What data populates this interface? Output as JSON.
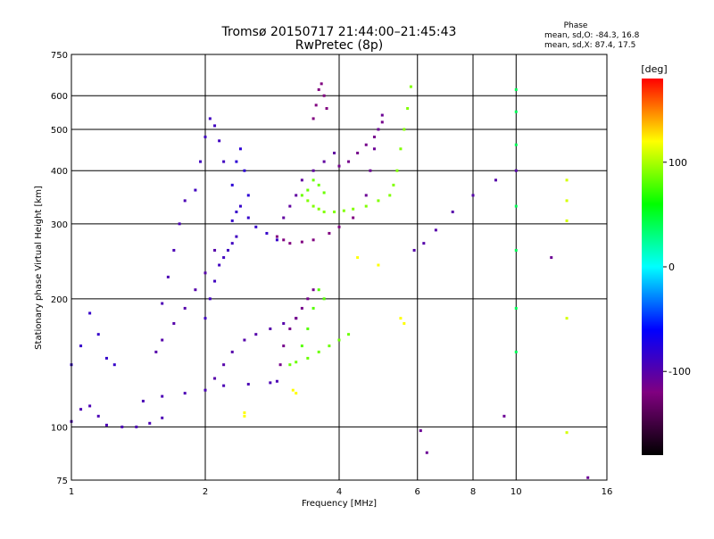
{
  "chart_data": {
    "type": "scatter",
    "title": "Tromsø 20150717 21:44:00–21:45:43",
    "subtitle": "RwPretec (8p)",
    "xlabel": "Frequency [MHz]",
    "ylabel": "Stationary phase Virtual Height [km]",
    "x_scale": "log",
    "y_scale": "log",
    "xlim": [
      1,
      16
    ],
    "ylim": [
      75,
      750
    ],
    "x_ticks": [
      1,
      2,
      4,
      6,
      8,
      10,
      16
    ],
    "y_ticks": [
      75,
      100,
      200,
      300,
      400,
      500,
      600,
      750
    ],
    "grid": true,
    "stats": {
      "heading": "Phase",
      "line_o": "mean, sd,O: -84.3, 16.8",
      "line_x": "mean, sd,X:  87.4, 17.5"
    },
    "colorbar": {
      "label": "[deg]",
      "ticks": [
        100,
        0,
        -100
      ],
      "range": [
        -180,
        180
      ],
      "colors": [
        "#ff0000",
        "#ffff00",
        "#00ff00",
        "#00ffff",
        "#0000ff",
        "#800080",
        "#000000"
      ]
    },
    "traces": [
      {
        "name": "",
        "phase": -95,
        "x": [
          1.0,
          1.05,
          1.1,
          1.15,
          1.2,
          1.3,
          1.4,
          1.5,
          1.6
        ],
        "y": [
          103,
          110,
          112,
          106,
          101,
          100,
          100,
          102,
          105
        ]
      },
      {
        "name": "",
        "phase": -85,
        "x": [
          1.0,
          1.05,
          1.1,
          1.15,
          1.2,
          1.25
        ],
        "y": [
          140,
          155,
          185,
          165,
          145,
          140
        ]
      },
      {
        "name": "",
        "phase": -95,
        "x": [
          1.45,
          1.6,
          1.8,
          2.0,
          2.2,
          2.5,
          2.8,
          2.9
        ],
        "y": [
          115,
          118,
          120,
          122,
          125,
          126,
          127,
          128
        ]
      },
      {
        "name": "",
        "phase": -100,
        "x": [
          1.55,
          1.6,
          1.7,
          1.8,
          1.9,
          2.0,
          2.1
        ],
        "y": [
          150,
          160,
          175,
          190,
          210,
          230,
          260
        ]
      },
      {
        "name": "",
        "phase": -95,
        "x": [
          1.6,
          1.65,
          1.7,
          1.75,
          1.8
        ],
        "y": [
          195,
          225,
          260,
          300,
          340
        ]
      },
      {
        "name": "",
        "phase": -90,
        "x": [
          1.9,
          1.95,
          2.0,
          2.05,
          2.1,
          2.15,
          2.2
        ],
        "y": [
          360,
          420,
          480,
          530,
          510,
          470,
          420
        ]
      },
      {
        "name": "",
        "phase": -100,
        "x": [
          2.1,
          2.2,
          2.3,
          2.45,
          2.6,
          2.8,
          3.0,
          3.2
        ],
        "y": [
          130,
          140,
          150,
          160,
          165,
          170,
          175,
          180
        ]
      },
      {
        "name": "",
        "phase": -85,
        "x": [
          2.3,
          2.35,
          2.4,
          2.5,
          2.6,
          2.75,
          2.9
        ],
        "y": [
          305,
          320,
          330,
          310,
          295,
          285,
          275
        ]
      },
      {
        "name": "",
        "phase": -80,
        "x": [
          2.3,
          2.35,
          2.4,
          2.45,
          2.5
        ],
        "y": [
          370,
          420,
          450,
          400,
          350
        ]
      },
      {
        "name": "",
        "phase": -90,
        "x": [
          2.0,
          2.05,
          2.1,
          2.15,
          2.2,
          2.25,
          2.3,
          2.35
        ],
        "y": [
          180,
          200,
          220,
          240,
          250,
          260,
          270,
          280
        ]
      },
      {
        "name": "",
        "phase": -115,
        "x": [
          2.95,
          3.0,
          3.1,
          3.2,
          3.3,
          3.4,
          3.5
        ],
        "y": [
          140,
          155,
          170,
          180,
          190,
          200,
          210
        ]
      },
      {
        "name": "",
        "phase": -120,
        "x": [
          2.9,
          3.0,
          3.1,
          3.3,
          3.5,
          3.8,
          4.0,
          4.3
        ],
        "y": [
          280,
          275,
          270,
          272,
          275,
          285,
          295,
          310
        ]
      },
      {
        "name": "",
        "phase": -105,
        "x": [
          3.0,
          3.1,
          3.2,
          3.3,
          3.5,
          3.7,
          3.9
        ],
        "y": [
          310,
          330,
          350,
          380,
          400,
          420,
          440
        ]
      },
      {
        "name": "",
        "phase": 85,
        "x": [
          3.1,
          3.2,
          3.4,
          3.6,
          3.8,
          4.0,
          4.2
        ],
        "y": [
          140,
          142,
          145,
          150,
          155,
          160,
          165
        ]
      },
      {
        "name": "",
        "phase": 80,
        "x": [
          3.3,
          3.4,
          3.5,
          3.6,
          3.7
        ],
        "y": [
          155,
          170,
          190,
          210,
          200
        ]
      },
      {
        "name": "",
        "phase": 90,
        "x": [
          3.4,
          3.5,
          3.6,
          3.7,
          3.9,
          4.1,
          4.3,
          4.6,
          4.9,
          5.2
        ],
        "y": [
          340,
          330,
          325,
          320,
          320,
          322,
          325,
          330,
          340,
          350
        ]
      },
      {
        "name": "",
        "phase": 85,
        "x": [
          3.3,
          3.4,
          3.5,
          3.6,
          3.7
        ],
        "y": [
          350,
          360,
          380,
          370,
          355
        ]
      },
      {
        "name": "",
        "phase": -120,
        "x": [
          3.5,
          3.55,
          3.6,
          3.65,
          3.7,
          3.75
        ],
        "y": [
          530,
          570,
          620,
          640,
          600,
          560
        ]
      },
      {
        "name": "",
        "phase": -115,
        "x": [
          4.0,
          4.2,
          4.4,
          4.6,
          4.8,
          5.0
        ],
        "y": [
          410,
          420,
          440,
          460,
          480,
          520
        ]
      },
      {
        "name": "",
        "phase": -110,
        "x": [
          4.6,
          4.7,
          4.8,
          4.9,
          5.0
        ],
        "y": [
          350,
          400,
          450,
          500,
          540
        ]
      },
      {
        "name": "",
        "phase": 90,
        "x": [
          5.3,
          5.4,
          5.5,
          5.6,
          5.7,
          5.8
        ],
        "y": [
          370,
          400,
          450,
          500,
          560,
          630
        ]
      },
      {
        "name": "",
        "phase": -100,
        "x": [
          5.9,
          6.2,
          6.6,
          7.2,
          8.0,
          9.0,
          10.0
        ],
        "y": [
          260,
          270,
          290,
          320,
          350,
          380,
          400
        ]
      },
      {
        "name": "",
        "phase": 40,
        "x": [
          10.0,
          10.0,
          10.0,
          10.0,
          10.0,
          10.0,
          10.0
        ],
        "y": [
          620,
          550,
          460,
          330,
          260,
          190,
          150
        ]
      },
      {
        "name": "",
        "phase": 110,
        "x": [
          13.0,
          13.0,
          13.0,
          13.0,
          13.0
        ],
        "y": [
          380,
          340,
          305,
          180,
          97
        ]
      },
      {
        "name": "",
        "phase": -110,
        "x": [
          6.1,
          6.3,
          9.4,
          12.0,
          14.5
        ],
        "y": [
          98,
          87,
          106,
          250,
          76
        ]
      },
      {
        "name": "",
        "phase": 120,
        "x": [
          2.45,
          2.45,
          3.15,
          3.2,
          4.4,
          4.9,
          5.5,
          5.6
        ],
        "y": [
          108,
          106,
          122,
          120,
          250,
          240,
          180,
          175
        ]
      }
    ]
  }
}
